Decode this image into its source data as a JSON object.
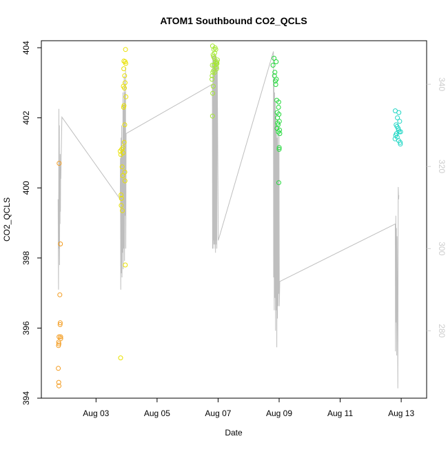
{
  "chart_data": {
    "type": "scatter",
    "title": "ATOM1 Southbound CO2_QCLS",
    "xlabel": "Date",
    "ylabel": "CO2_QCLS",
    "grid": false,
    "legend": "none",
    "x_axis": {
      "type": "date",
      "range": [
        "2016-08-01T05:00",
        "2016-08-13T20:00"
      ],
      "ticks": [
        {
          "value": "2016-08-03",
          "label": "Aug 03"
        },
        {
          "value": "2016-08-05",
          "label": "Aug 05"
        },
        {
          "value": "2016-08-07",
          "label": "Aug 07"
        },
        {
          "value": "2016-08-09",
          "label": "Aug 09"
        },
        {
          "value": "2016-08-11",
          "label": "Aug 11"
        },
        {
          "value": "2016-08-13",
          "label": "Aug 13"
        }
      ]
    },
    "y_axis_left": {
      "range": [
        394,
        404.2
      ],
      "ticks": [
        394,
        396,
        398,
        400,
        402,
        404
      ]
    },
    "y_axis_right": {
      "range": [
        263.6,
        350.6
      ],
      "ticks": [
        280,
        300,
        320,
        340
      ],
      "color": "#cccccc"
    },
    "series": [
      {
        "type": "points",
        "axis": "left",
        "color": "#f39a1c",
        "points": [
          [
            "2016-08-01T19:00",
            400.7
          ],
          [
            "2016-08-01T20:00",
            398.4
          ],
          [
            "2016-08-01T19:30",
            396.95
          ],
          [
            "2016-08-01T19:45",
            396.1
          ],
          [
            "2016-08-01T19:50",
            396.15
          ],
          [
            "2016-08-01T18:55",
            395.75
          ],
          [
            "2016-08-01T18:35",
            395.6
          ],
          [
            "2016-08-01T18:30",
            395.5
          ],
          [
            "2016-08-01T18:45",
            395.55
          ],
          [
            "2016-08-01T20:10",
            395.75
          ],
          [
            "2016-08-01T20:15",
            395.7
          ],
          [
            "2016-08-01T18:20",
            394.85
          ],
          [
            "2016-08-01T18:40",
            394.45
          ],
          [
            "2016-08-01T18:50",
            394.35
          ]
        ]
      },
      {
        "type": "points",
        "axis": "left",
        "color": "#e9e100",
        "points": [
          [
            "2016-08-03T19:00",
            401.05
          ],
          [
            "2016-08-03T19:30",
            400.95
          ],
          [
            "2016-08-03T20:10",
            401.1
          ],
          [
            "2016-08-03T21:10",
            401.15
          ],
          [
            "2016-08-03T21:20",
            401.0
          ],
          [
            "2016-08-03T22:10",
            401.3
          ],
          [
            "2016-08-03T22:40",
            400.45
          ],
          [
            "2016-08-03T20:30",
            400.6
          ],
          [
            "2016-08-03T21:00",
            400.35
          ],
          [
            "2016-08-03T19:40",
            399.8
          ],
          [
            "2016-08-03T20:00",
            399.7
          ],
          [
            "2016-08-03T19:50",
            399.5
          ],
          [
            "2016-08-03T20:40",
            399.35
          ],
          [
            "2016-08-03T19:20",
            395.15
          ],
          [
            "2016-08-03T23:00",
            397.8
          ],
          [
            "2016-08-03T21:40",
            402.3
          ],
          [
            "2016-08-03T22:00",
            402.35
          ],
          [
            "2016-08-03T21:30",
            402.9
          ],
          [
            "2016-08-03T22:20",
            402.85
          ],
          [
            "2016-08-03T22:50",
            403.0
          ],
          [
            "2016-08-03T22:30",
            403.2
          ],
          [
            "2016-08-03T21:50",
            403.4
          ],
          [
            "2016-08-03T23:20",
            403.55
          ],
          [
            "2016-08-03T22:55",
            403.6
          ],
          [
            "2016-08-03T21:55",
            403.62
          ],
          [
            "2016-08-03T23:30",
            402.6
          ],
          [
            "2016-08-03T23:10",
            403.95
          ],
          [
            "2016-08-03T22:45",
            400.2
          ],
          [
            "2016-08-03T22:35",
            401.8
          ]
        ]
      },
      {
        "type": "points",
        "axis": "left",
        "color": "#a4e832",
        "points": [
          [
            "2016-08-06T19:40",
            404.05
          ],
          [
            "2016-08-06T20:40",
            403.95
          ],
          [
            "2016-08-06T21:20",
            403.85
          ],
          [
            "2016-08-06T21:40",
            404.0
          ],
          [
            "2016-08-06T22:10",
            403.95
          ],
          [
            "2016-08-06T20:00",
            403.8
          ],
          [
            "2016-08-06T20:20",
            403.75
          ],
          [
            "2016-08-06T21:00",
            403.7
          ],
          [
            "2016-08-06T21:50",
            403.6
          ],
          [
            "2016-08-06T22:30",
            403.55
          ],
          [
            "2016-08-06T23:00",
            403.6
          ],
          [
            "2016-08-06T23:30",
            403.65
          ],
          [
            "2016-08-06T19:30",
            403.5
          ],
          [
            "2016-08-06T20:50",
            403.5
          ],
          [
            "2016-08-06T22:50",
            403.4
          ],
          [
            "2016-08-06T19:20",
            403.2
          ],
          [
            "2016-08-06T19:50",
            403.3
          ],
          [
            "2016-08-06T20:30",
            403.35
          ],
          [
            "2016-08-06T19:10",
            403.1
          ],
          [
            "2016-08-06T20:10",
            402.9
          ],
          [
            "2016-08-06T19:45",
            402.7
          ],
          [
            "2016-08-06T19:35",
            402.05
          ],
          [
            "2016-08-06T21:30",
            403.3
          ],
          [
            "2016-08-06T22:40",
            403.45
          ],
          [
            "2016-08-06T23:10",
            403.55
          ]
        ]
      },
      {
        "type": "points",
        "axis": "left",
        "color": "#22d83a",
        "points": [
          [
            "2016-08-08T20:00",
            403.7
          ],
          [
            "2016-08-08T21:40",
            403.6
          ],
          [
            "2016-08-08T19:10",
            403.5
          ],
          [
            "2016-08-08T20:40",
            403.3
          ],
          [
            "2016-08-08T20:20",
            403.2
          ],
          [
            "2016-08-08T21:00",
            403.05
          ],
          [
            "2016-08-08T21:20",
            402.95
          ],
          [
            "2016-08-08T22:10",
            402.5
          ],
          [
            "2016-08-08T23:40",
            402.45
          ],
          [
            "2016-08-08T23:30",
            402.3
          ],
          [
            "2016-08-08T22:30",
            402.15
          ],
          [
            "2016-08-08T23:50",
            402.1
          ],
          [
            "2016-08-09T00:10",
            401.9
          ],
          [
            "2016-08-08T22:50",
            401.85
          ],
          [
            "2016-08-08T23:10",
            401.8
          ],
          [
            "2016-08-08T22:20",
            401.7
          ],
          [
            "2016-08-09T00:20",
            401.65
          ],
          [
            "2016-08-08T23:20",
            401.6
          ],
          [
            "2016-08-09T00:30",
            401.55
          ],
          [
            "2016-08-09T00:00",
            401.1
          ],
          [
            "2016-08-09T00:05",
            401.15
          ],
          [
            "2016-08-08T23:45",
            400.15
          ],
          [
            "2016-08-08T21:50",
            403.1
          ],
          [
            "2016-08-08T22:40",
            402.0
          ]
        ]
      },
      {
        "type": "points",
        "axis": "left",
        "color": "#1fd6c4",
        "points": [
          [
            "2016-08-12T19:20",
            402.2
          ],
          [
            "2016-08-12T22:10",
            402.15
          ],
          [
            "2016-08-12T20:00",
            401.8
          ],
          [
            "2016-08-12T21:00",
            402.0
          ],
          [
            "2016-08-12T22:50",
            401.9
          ],
          [
            "2016-08-12T20:40",
            401.75
          ],
          [
            "2016-08-12T21:40",
            401.7
          ],
          [
            "2016-08-12T23:30",
            401.6
          ],
          [
            "2016-08-12T19:40",
            401.5
          ],
          [
            "2016-08-12T20:20",
            401.55
          ],
          [
            "2016-08-12T22:30",
            401.6
          ],
          [
            "2016-08-12T19:10",
            401.4
          ],
          [
            "2016-08-12T20:50",
            401.45
          ],
          [
            "2016-08-12T23:10",
            401.3
          ],
          [
            "2016-08-12T23:20",
            401.25
          ],
          [
            "2016-08-12T21:50",
            401.65
          ],
          [
            "2016-08-12T22:00",
            401.35
          ]
        ]
      },
      {
        "type": "line",
        "axis": "right",
        "color": "#bebebe",
        "points": [
          [
            "2016-08-01T18:10",
            312
          ],
          [
            "2016-08-01T18:30",
            290
          ],
          [
            "2016-08-01T18:45",
            334
          ],
          [
            "2016-08-01T19:00",
            300
          ],
          [
            "2016-08-01T19:10",
            330
          ],
          [
            "2016-08-01T19:20",
            296
          ],
          [
            "2016-08-01T19:30",
            321
          ],
          [
            "2016-08-01T19:40",
            306
          ],
          [
            "2016-08-01T19:50",
            323
          ],
          [
            "2016-08-01T20:00",
            309
          ],
          [
            "2016-08-01T20:10",
            320
          ],
          [
            "2016-08-01T20:20",
            317
          ],
          [
            "2016-08-01T21:10",
            332
          ],
          [
            "2016-08-03T19:00",
            312
          ],
          [
            "2016-08-03T19:10",
            322
          ],
          [
            "2016-08-03T19:25",
            290
          ],
          [
            "2016-08-03T19:40",
            327
          ],
          [
            "2016-08-03T19:55",
            294
          ],
          [
            "2016-08-03T20:10",
            330
          ],
          [
            "2016-08-03T20:25",
            293
          ],
          [
            "2016-08-03T20:40",
            324
          ],
          [
            "2016-08-03T20:55",
            299
          ],
          [
            "2016-08-03T21:10",
            338
          ],
          [
            "2016-08-03T21:25",
            295
          ],
          [
            "2016-08-03T21:40",
            335
          ],
          [
            "2016-08-03T21:55",
            300
          ],
          [
            "2016-08-03T22:10",
            342
          ],
          [
            "2016-08-03T22:25",
            297
          ],
          [
            "2016-08-03T22:40",
            338
          ],
          [
            "2016-08-03T22:55",
            308
          ],
          [
            "2016-08-03T23:10",
            344
          ],
          [
            "2016-08-03T23:25",
            300
          ],
          [
            "2016-08-03T23:40",
            328
          ],
          [
            "2016-08-06T19:30",
            340
          ],
          [
            "2016-08-06T19:40",
            300
          ],
          [
            "2016-08-06T19:50",
            347
          ],
          [
            "2016-08-06T20:00",
            300
          ],
          [
            "2016-08-06T20:10",
            346
          ],
          [
            "2016-08-06T20:20",
            302
          ],
          [
            "2016-08-06T20:30",
            347
          ],
          [
            "2016-08-06T20:40",
            301
          ],
          [
            "2016-08-06T20:50",
            346
          ],
          [
            "2016-08-06T21:00",
            302
          ],
          [
            "2016-08-06T21:10",
            347
          ],
          [
            "2016-08-06T21:20",
            301
          ],
          [
            "2016-08-06T21:30",
            346
          ],
          [
            "2016-08-06T21:40",
            300
          ],
          [
            "2016-08-06T21:50",
            347
          ],
          [
            "2016-08-06T22:00",
            299
          ],
          [
            "2016-08-06T22:10",
            346
          ],
          [
            "2016-08-06T22:20",
            302
          ],
          [
            "2016-08-06T22:30",
            347
          ],
          [
            "2016-08-06T22:40",
            301
          ],
          [
            "2016-08-06T22:50",
            345
          ],
          [
            "2016-08-06T23:00",
            300
          ],
          [
            "2016-08-06T23:20",
            346
          ],
          [
            "2016-08-07T00:10",
            302
          ],
          [
            "2016-08-08T19:30",
            348
          ],
          [
            "2016-08-08T19:40",
            293
          ],
          [
            "2016-08-08T19:55",
            341
          ],
          [
            "2016-08-08T20:10",
            285
          ],
          [
            "2016-08-08T20:25",
            338
          ],
          [
            "2016-08-08T20:40",
            288
          ],
          [
            "2016-08-08T20:55",
            336
          ],
          [
            "2016-08-08T21:10",
            280
          ],
          [
            "2016-08-08T21:25",
            333
          ],
          [
            "2016-08-08T21:40",
            285
          ],
          [
            "2016-08-08T21:55",
            330
          ],
          [
            "2016-08-08T22:10",
            276
          ],
          [
            "2016-08-08T22:25",
            327
          ],
          [
            "2016-08-08T22:40",
            283
          ],
          [
            "2016-08-08T22:55",
            330
          ],
          [
            "2016-08-08T23:10",
            286
          ],
          [
            "2016-08-08T23:25",
            324
          ],
          [
            "2016-08-08T23:40",
            289
          ],
          [
            "2016-08-08T23:55",
            328
          ],
          [
            "2016-08-09T00:10",
            286
          ],
          [
            "2016-08-09T00:30",
            292
          ],
          [
            "2016-08-12T19:20",
            306
          ],
          [
            "2016-08-12T19:30",
            275
          ],
          [
            "2016-08-12T19:45",
            308
          ],
          [
            "2016-08-12T20:00",
            282
          ],
          [
            "2016-08-12T20:15",
            305
          ],
          [
            "2016-08-12T20:30",
            274
          ],
          [
            "2016-08-12T20:45",
            303
          ],
          [
            "2016-08-12T21:00",
            290
          ],
          [
            "2016-08-12T21:20",
            266
          ],
          [
            "2016-08-12T21:40",
            315
          ],
          [
            "2016-08-12T22:00",
            312
          ],
          [
            "2016-08-12T22:10",
            313
          ]
        ]
      }
    ]
  }
}
